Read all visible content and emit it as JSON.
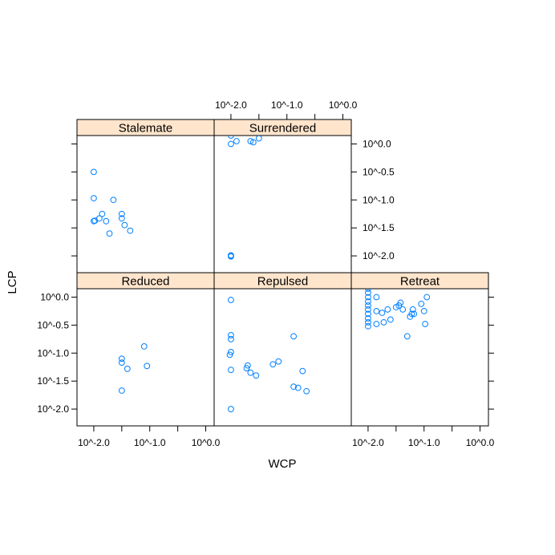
{
  "chart_data": {
    "type": "scatter",
    "xlabel": "WCP",
    "ylabel": "LCP",
    "x_scale": "log10",
    "y_scale": "log10",
    "xlim": [
      -2.3,
      0.15
    ],
    "ylim": [
      -2.3,
      0.15
    ],
    "x_ticks": [
      {
        "value": -2.0,
        "label": "10^-2.0"
      },
      {
        "value": -1.5,
        "label": ""
      },
      {
        "value": -1.0,
        "label": "10^-1.0"
      },
      {
        "value": -0.5,
        "label": ""
      },
      {
        "value": 0.0,
        "label": "10^0.0"
      }
    ],
    "y_ticks": [
      {
        "value": 0.0,
        "label": "10^0.0"
      },
      {
        "value": -0.5,
        "label": "10^-0.5"
      },
      {
        "value": -1.0,
        "label": "10^-1.0"
      },
      {
        "value": -1.5,
        "label": "10^-1.5"
      },
      {
        "value": -2.0,
        "label": "10^-2.0"
      }
    ],
    "point_color": "#0080ff",
    "strip_color": "#ffe5cc",
    "panels": [
      {
        "name": "Stalemate",
        "row": 1,
        "col": 0,
        "points": [
          [
            -2.0,
            -0.5
          ],
          [
            -2.0,
            -0.97
          ],
          [
            -2.0,
            -1.38
          ],
          [
            -1.98,
            -1.37
          ],
          [
            -1.9,
            -1.33
          ],
          [
            -1.85,
            -1.25
          ],
          [
            -1.78,
            -1.38
          ],
          [
            -1.72,
            -1.6
          ],
          [
            -1.65,
            -1.0
          ],
          [
            -1.5,
            -1.25
          ],
          [
            -1.5,
            -1.33
          ],
          [
            -1.45,
            -1.45
          ],
          [
            -1.35,
            -1.55
          ]
        ]
      },
      {
        "name": "Surrendered",
        "row": 1,
        "col": 1,
        "points": [
          [
            -2.0,
            0.15
          ],
          [
            -2.0,
            0.0
          ],
          [
            -1.9,
            0.05
          ],
          [
            -1.65,
            0.05
          ],
          [
            -1.6,
            0.03
          ],
          [
            -1.5,
            0.1
          ],
          [
            -2.0,
            -2.0
          ],
          [
            -2.0,
            -1.99
          ],
          [
            -2.0,
            -2.01
          ]
        ]
      },
      {
        "name": "Reduced",
        "row": 0,
        "col": 0,
        "points": [
          [
            -1.5,
            -1.1
          ],
          [
            -1.5,
            -1.17
          ],
          [
            -1.4,
            -1.28
          ],
          [
            -1.1,
            -0.88
          ],
          [
            -1.05,
            -1.23
          ],
          [
            -1.5,
            -1.67
          ]
        ]
      },
      {
        "name": "Repulsed",
        "row": 0,
        "col": 1,
        "points": [
          [
            -2.0,
            -0.05
          ],
          [
            -2.0,
            -0.68
          ],
          [
            -2.0,
            -0.75
          ],
          [
            -2.0,
            -0.98
          ],
          [
            -2.02,
            -1.03
          ],
          [
            -2.0,
            -1.3
          ],
          [
            -1.7,
            -1.22
          ],
          [
            -1.72,
            -1.27
          ],
          [
            -1.65,
            -1.35
          ],
          [
            -1.55,
            -1.4
          ],
          [
            -1.25,
            -1.2
          ],
          [
            -1.15,
            -1.15
          ],
          [
            -0.88,
            -0.7
          ],
          [
            -0.88,
            -1.6
          ],
          [
            -0.8,
            -1.62
          ],
          [
            -0.72,
            -1.32
          ],
          [
            -0.65,
            -1.68
          ],
          [
            -2.0,
            -2.0
          ]
        ]
      },
      {
        "name": "Retreat",
        "row": 0,
        "col": 2,
        "points": [
          [
            -2.0,
            0.15
          ],
          [
            -2.0,
            0.08
          ],
          [
            -2.0,
            0.0
          ],
          [
            -2.0,
            -0.08
          ],
          [
            -2.0,
            -0.15
          ],
          [
            -2.0,
            -0.22
          ],
          [
            -2.0,
            -0.3
          ],
          [
            -2.0,
            -0.38
          ],
          [
            -2.0,
            -0.45
          ],
          [
            -2.0,
            -0.52
          ],
          [
            -1.85,
            0.0
          ],
          [
            -1.85,
            -0.25
          ],
          [
            -1.85,
            -0.48
          ],
          [
            -1.75,
            -0.28
          ],
          [
            -1.72,
            -0.45
          ],
          [
            -1.65,
            -0.22
          ],
          [
            -1.6,
            -0.4
          ],
          [
            -1.5,
            -0.18
          ],
          [
            -1.45,
            -0.15
          ],
          [
            -1.42,
            -0.1
          ],
          [
            -1.38,
            -0.22
          ],
          [
            -1.25,
            -0.35
          ],
          [
            -1.22,
            -0.3
          ],
          [
            -1.2,
            -0.22
          ],
          [
            -1.18,
            -0.3
          ],
          [
            -1.05,
            -0.12
          ],
          [
            -1.0,
            -0.25
          ],
          [
            -0.98,
            -0.48
          ],
          [
            -0.95,
            0.0
          ],
          [
            -1.3,
            -0.7
          ]
        ]
      }
    ]
  }
}
